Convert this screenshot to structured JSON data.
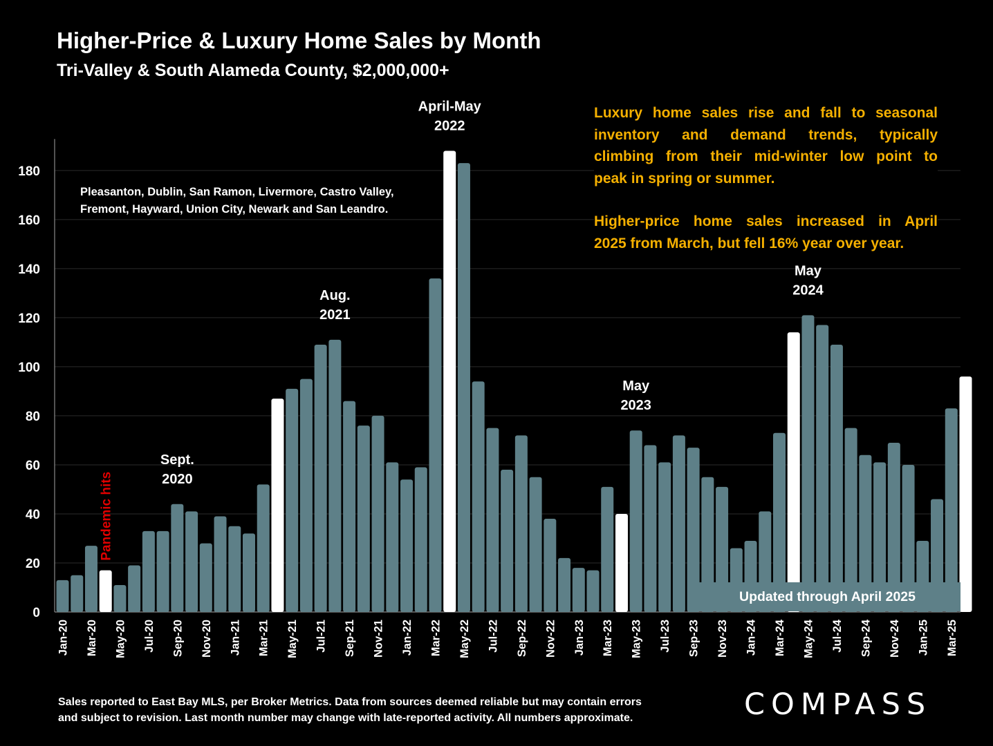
{
  "title": "Higher-Price & Luxury Home Sales by Month",
  "subtitle": "Tri-Valley & South Alameda County, $2,000,000+",
  "cities_note": [
    "Pleasanton, Dublin, San Ramon, Livermore, Castro Valley,",
    "Fremont, Hayward, Union City, Newark and San Leandro."
  ],
  "commentary": {
    "paragraph1": [
      "Luxury home sales rise and fall to seasonal",
      "inventory and demand trends, typically",
      "climbing from their mid-winter low point to",
      "peak in spring or summer."
    ],
    "paragraph2": [
      "Higher-price home sales increased in April",
      "2025 from March, but fell 16% year over year."
    ]
  },
  "updated_note": "Updated through April 2025",
  "footnote": [
    "Sales reported to East Bay MLS, per Broker Metrics. Data from sources deemed reliable but may contain errors",
    "and subject to revision. Last month number may change with late-reported activity. All numbers approximate."
  ],
  "logo": "COMPASS",
  "colors": {
    "bar": "#5e8088",
    "highlight": "#ffffff",
    "annotation": "#ffffff",
    "pandemic": "#e00000",
    "commentary": "#f5b000",
    "background": "#000000"
  },
  "chart_data": {
    "type": "bar",
    "ylim": [
      0,
      190
    ],
    "yticks": [
      0,
      20,
      40,
      60,
      80,
      100,
      120,
      140,
      160,
      180
    ],
    "grid": true,
    "categories": [
      "Jan-20",
      "Feb-20",
      "Mar-20",
      "Apr-20",
      "May-20",
      "Jun-20",
      "Jul-20",
      "Aug-20",
      "Sep-20",
      "Oct-20",
      "Nov-20",
      "Dec-20",
      "Jan-21",
      "Feb-21",
      "Mar-21",
      "Apr-21",
      "May-21",
      "Jun-21",
      "Jul-21",
      "Aug-21",
      "Sep-21",
      "Oct-21",
      "Nov-21",
      "Dec-21",
      "Jan-22",
      "Feb-22",
      "Mar-22",
      "Apr-22",
      "May-22",
      "Jun-22",
      "Jul-22",
      "Aug-22",
      "Sep-22",
      "Oct-22",
      "Nov-22",
      "Dec-22",
      "Jan-23",
      "Feb-23",
      "Mar-23",
      "Apr-23",
      "May-23",
      "Jun-23",
      "Jul-23",
      "Aug-23",
      "Sep-23",
      "Oct-23",
      "Nov-23",
      "Dec-23",
      "Jan-24",
      "Feb-24",
      "Mar-24",
      "Apr-24",
      "May-24",
      "Jun-24",
      "Jul-24",
      "Aug-24",
      "Sep-24",
      "Oct-24",
      "Nov-24",
      "Dec-24",
      "Jan-25",
      "Feb-25",
      "Mar-25",
      "Apr-25"
    ],
    "tick_labels": [
      "Jan-20",
      "",
      "Mar-20",
      "",
      "May-20",
      "",
      "Jul-20",
      "",
      "Sep-20",
      "",
      "Nov-20",
      "",
      "Jan-21",
      "",
      "Mar-21",
      "",
      "May-21",
      "",
      "Jul-21",
      "",
      "Sep-21",
      "",
      "Nov-21",
      "",
      "Jan-22",
      "",
      "Mar-22",
      "",
      "May-22",
      "",
      "Jul-22",
      "",
      "Sep-22",
      "",
      "Nov-22",
      "",
      "Jan-23",
      "",
      "Mar-23",
      "",
      "May-23",
      "",
      "Jul-23",
      "",
      "Sep-23",
      "",
      "Nov-23",
      "",
      "Jan-24",
      "",
      "Mar-24",
      "",
      "May-24",
      "",
      "Jul-24",
      "",
      "Sep-24",
      "",
      "Nov-24",
      "",
      "Jan-25",
      "",
      "Mar-25",
      ""
    ],
    "values": [
      13,
      15,
      27,
      17,
      11,
      19,
      33,
      33,
      44,
      41,
      28,
      39,
      35,
      32,
      52,
      87,
      91,
      95,
      109,
      111,
      86,
      76,
      80,
      61,
      54,
      59,
      136,
      188,
      183,
      94,
      75,
      58,
      72,
      55,
      38,
      22,
      18,
      17,
      51,
      40,
      74,
      68,
      61,
      72,
      67,
      55,
      51,
      26,
      29,
      41,
      73,
      114,
      121,
      117,
      109,
      75,
      64,
      61,
      69,
      60,
      29,
      46,
      83,
      96
    ],
    "highlighted": [
      "Apr-20",
      "Apr-21",
      "Apr-22",
      "Apr-23",
      "Apr-24",
      "Apr-25"
    ],
    "annotations": [
      {
        "label": [
          "Sept.",
          "2020"
        ],
        "category": "Sep-20"
      },
      {
        "label": [
          "Aug.",
          "2021"
        ],
        "category": "Aug-21"
      },
      {
        "label": [
          "April-May",
          "2022"
        ],
        "category": "Apr-22"
      },
      {
        "label": [
          "May",
          "2023"
        ],
        "category": "May-23"
      },
      {
        "label": [
          "May",
          "2024"
        ],
        "category": "May-24"
      }
    ],
    "pandemic_label": "Pandemic hits",
    "pandemic_category": "Apr-20"
  }
}
